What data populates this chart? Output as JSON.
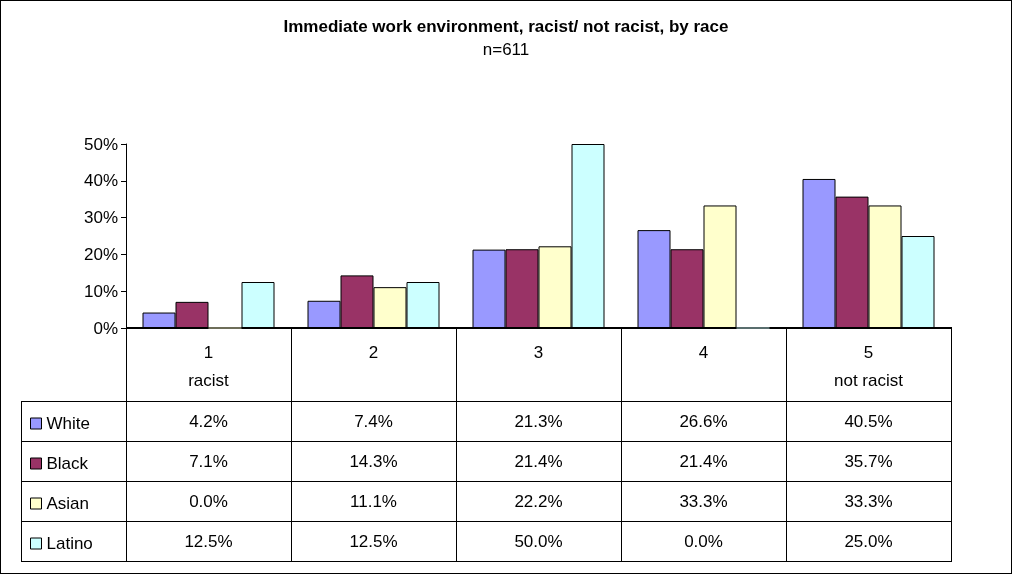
{
  "chart_data": {
    "type": "bar",
    "title": "Immediate work environment, racist/ not racist, by race",
    "subtitle": "n=611",
    "categories": [
      "1\nracist",
      "2",
      "3",
      "4",
      "5\nnot racist"
    ],
    "series": [
      {
        "name": "White",
        "color": "#9999ff",
        "values": [
          4.2,
          7.4,
          21.3,
          26.6,
          40.5
        ],
        "value_labels": [
          "4.2%",
          "7.4%",
          "21.3%",
          "26.6%",
          "40.5%"
        ]
      },
      {
        "name": "Black",
        "color": "#993366",
        "values": [
          7.1,
          14.3,
          21.4,
          21.4,
          35.7
        ],
        "value_labels": [
          "7.1%",
          "14.3%",
          "21.4%",
          "21.4%",
          "35.7%"
        ]
      },
      {
        "name": "Asian",
        "color": "#ffffcc",
        "values": [
          0.0,
          11.1,
          22.2,
          33.3,
          33.3
        ],
        "value_labels": [
          "0.0%",
          "11.1%",
          "22.2%",
          "33.3%",
          "33.3%"
        ]
      },
      {
        "name": "Latino",
        "color": "#ccffff",
        "values": [
          12.5,
          12.5,
          50.0,
          0.0,
          25.0
        ],
        "value_labels": [
          "12.5%",
          "12.5%",
          "50.0%",
          "0.0%",
          "25.0%"
        ]
      }
    ],
    "ylim": [
      0,
      50
    ],
    "yticks": [
      {
        "value": 0,
        "label": "0%"
      },
      {
        "value": 10,
        "label": "10%"
      },
      {
        "value": 20,
        "label": "20%"
      },
      {
        "value": 30,
        "label": "30%"
      },
      {
        "value": 40,
        "label": "40%"
      },
      {
        "value": 50,
        "label": "50%"
      }
    ],
    "grid": false,
    "legend": "bottom left"
  }
}
